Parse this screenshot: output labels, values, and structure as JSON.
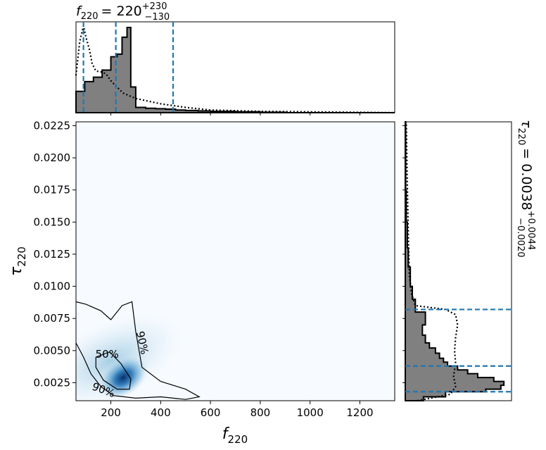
{
  "chart_data": {
    "type": "corner-plot",
    "main": {
      "type": "heatmap",
      "xlabel_sym": "f",
      "xlabel_sub": "220",
      "ylabel_sym": "τ",
      "ylabel_sub": "220",
      "xlim": [
        60,
        1340
      ],
      "ylim": [
        0.0011,
        0.0228
      ],
      "x_ticks": [
        200,
        400,
        600,
        800,
        1000,
        1200
      ],
      "x_tick_labels": [
        "200",
        "400",
        "600",
        "800",
        "1000",
        "1200"
      ],
      "y_ticks": [
        0.0025,
        0.005,
        0.0075,
        0.01,
        0.0125,
        0.015,
        0.0175,
        0.02,
        0.0225
      ],
      "y_tick_labels": [
        "0.0025",
        "0.0050",
        "0.0075",
        "0.0100",
        "0.0125",
        "0.0150",
        "0.0175",
        "0.0200",
        "0.0225"
      ],
      "density_peak": {
        "x": 250,
        "y": 0.0029
      },
      "contours": [
        {
          "label": "50%",
          "points": [
            [
              140,
              0.0045
            ],
            [
              195,
              0.0049
            ],
            [
              240,
              0.004
            ],
            [
              280,
              0.0028
            ],
            [
              275,
              0.002
            ],
            [
              225,
              0.002
            ],
            [
              170,
              0.0027
            ],
            [
              140,
              0.0037
            ],
            [
              140,
              0.0045
            ]
          ]
        },
        {
          "label": "90%",
          "points": [
            [
              60,
              0.0088
            ],
            [
              100,
              0.0086
            ],
            [
              160,
              0.0081
            ],
            [
              200,
              0.0074
            ],
            [
              245,
              0.0085
            ],
            [
              285,
              0.0088
            ],
            [
              300,
              0.0065
            ],
            [
              325,
              0.0037
            ],
            [
              400,
              0.0026
            ],
            [
              500,
              0.002
            ],
            [
              555,
              0.0014
            ],
            [
              500,
              0.0012
            ],
            [
              400,
              0.0014
            ],
            [
              300,
              0.0013
            ],
            [
              210,
              0.0015
            ],
            [
              160,
              0.0022
            ],
            [
              120,
              0.0032
            ],
            [
              90,
              0.0045
            ],
            [
              60,
              0.0056
            ]
          ]
        }
      ],
      "contour_labels": [
        {
          "text": "50%",
          "x": 185,
          "y": 0.0047,
          "rotate": 0
        },
        {
          "text": "90%",
          "x": 325,
          "y": 0.0056,
          "rotate": 78
        },
        {
          "text": "90%",
          "x": 170,
          "y": 0.0019,
          "rotate": 20
        }
      ]
    },
    "top": {
      "type": "histogram",
      "title_sym": "f",
      "title_sub": "220",
      "title_value": "= 220",
      "title_sup": "+230",
      "title_subscript": "−130",
      "xlim": [
        60,
        1340
      ],
      "ylim": [
        0,
        1.0
      ],
      "hist_edges": [
        60,
        95,
        130,
        165,
        200,
        225,
        245,
        265,
        280,
        300,
        340,
        380,
        420,
        460,
        500,
        550,
        600,
        700,
        800,
        900,
        1340
      ],
      "hist_values": [
        0.24,
        0.35,
        0.4,
        0.48,
        0.63,
        0.66,
        0.85,
        0.96,
        0.29,
        0.06,
        0.05,
        0.045,
        0.04,
        0.03,
        0.025,
        0.02,
        0.015,
        0.01,
        0.005,
        0.0
      ],
      "prior_x": [
        60,
        75,
        90,
        100,
        115,
        125,
        140,
        160,
        180,
        200,
        220,
        250,
        300,
        400,
        500,
        600,
        800,
        1340
      ],
      "prior_y": [
        0.42,
        0.8,
        0.98,
        0.85,
        0.7,
        0.55,
        0.47,
        0.46,
        0.44,
        0.36,
        0.3,
        0.22,
        0.16,
        0.1,
        0.06,
        0.03,
        0.015,
        0.0
      ],
      "quantiles": [
        90,
        220,
        450
      ]
    },
    "right": {
      "type": "histogram",
      "title_sym": "τ",
      "title_sub": "220",
      "title_value": "= 0.0038",
      "title_sup": "+0.0044",
      "title_subscript": "−0.0020",
      "ylim": [
        0.0011,
        0.0228
      ],
      "xlim": [
        0,
        1.0
      ],
      "hist_edges": [
        0.0011,
        0.0014,
        0.0018,
        0.002,
        0.0023,
        0.0026,
        0.0029,
        0.0032,
        0.0035,
        0.0038,
        0.0041,
        0.0044,
        0.0048,
        0.0052,
        0.0056,
        0.0062,
        0.007,
        0.008,
        0.009,
        0.01,
        0.0115,
        0.013,
        0.015,
        0.0175,
        0.0228
      ],
      "hist_values": [
        0.18,
        0.4,
        0.8,
        0.95,
        0.98,
        0.88,
        0.72,
        0.62,
        0.52,
        0.42,
        0.38,
        0.34,
        0.3,
        0.24,
        0.2,
        0.17,
        0.2,
        0.1,
        0.07,
        0.05,
        0.03,
        0.02,
        0.01,
        0.004
      ],
      "prior_y": [
        0.0011,
        0.0016,
        0.0022,
        0.003,
        0.004,
        0.005,
        0.006,
        0.007,
        0.0078,
        0.0082,
        0.0085,
        0.0095,
        0.011,
        0.014,
        0.018,
        0.0228
      ],
      "prior_x": [
        0.12,
        0.45,
        0.5,
        0.48,
        0.5,
        0.49,
        0.5,
        0.52,
        0.5,
        0.4,
        0.1,
        0.06,
        0.04,
        0.03,
        0.02,
        0.01
      ],
      "quantiles": [
        0.0018,
        0.0038,
        0.0082
      ]
    }
  }
}
